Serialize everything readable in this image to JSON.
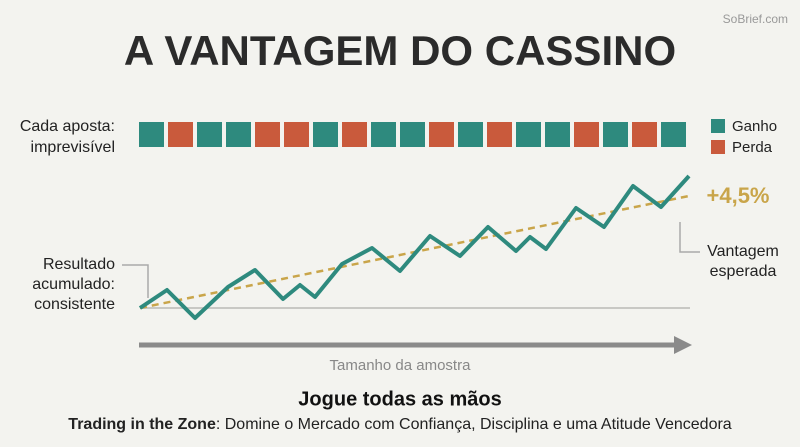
{
  "watermark": "SoBrief.com",
  "title": "A VANTAGEM DO CASSINO",
  "bets_label": [
    "Cada aposta:",
    "imprevisível"
  ],
  "legend": [
    "Ganho",
    "Perda"
  ],
  "edge_label": "+4,5%",
  "result_label": [
    "Resultado",
    "acumulado:",
    "consistente"
  ],
  "expected_label": [
    "Vantagem",
    "esperada"
  ],
  "x_label": "Tamanho da amostra",
  "subtitle": "Jogue todas as mãos",
  "footer": {
    "book": "Trading in the Zone",
    "rest": ": Domine o Mercado com Confiança, Disciplina e uma Atitude Vencedora"
  }
}
